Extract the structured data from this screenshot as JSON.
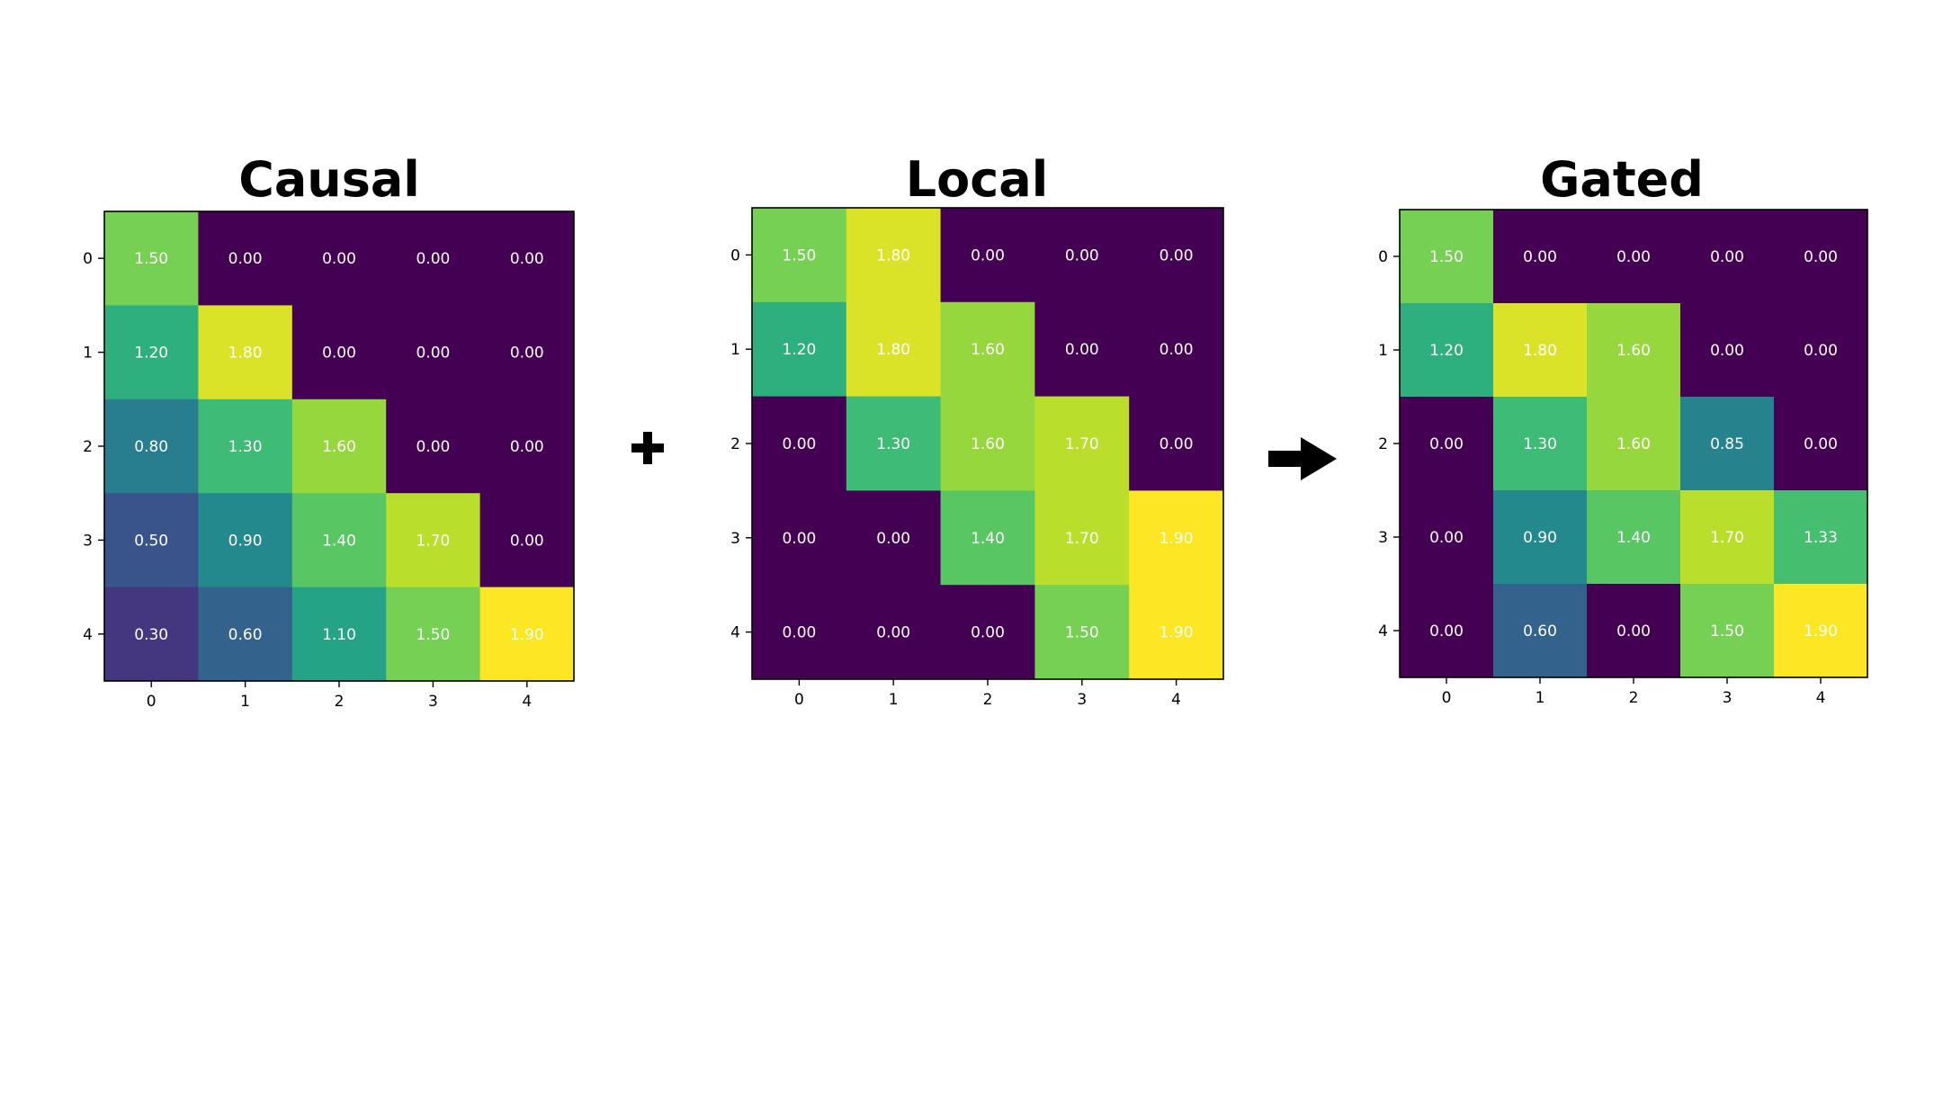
{
  "palette": {
    "viridis": [
      "#440154",
      "#482878",
      "#3e4989",
      "#31688e",
      "#26828e",
      "#1f9e89",
      "#35b779",
      "#6ece58",
      "#b5de2b",
      "#fde725"
    ],
    "operator_color": "#000000"
  },
  "operators": {
    "plus_icon": "plus-icon",
    "arrow_icon": "arrow-right-icon"
  },
  "chart_data": [
    {
      "type": "heatmap",
      "title": "Causal",
      "x_ticks": [
        "0",
        "1",
        "2",
        "3",
        "4"
      ],
      "y_ticks": [
        "0",
        "1",
        "2",
        "3",
        "4"
      ],
      "vmin": 0,
      "vmax": 1.9,
      "colormap": "viridis",
      "values": [
        [
          1.5,
          0.0,
          0.0,
          0.0,
          0.0
        ],
        [
          1.2,
          1.8,
          0.0,
          0.0,
          0.0
        ],
        [
          0.8,
          1.3,
          1.6,
          0.0,
          0.0
        ],
        [
          0.5,
          0.9,
          1.4,
          1.7,
          0.0
        ],
        [
          0.3,
          0.6,
          1.1,
          1.5,
          1.9
        ]
      ]
    },
    {
      "type": "heatmap",
      "title": "Local",
      "x_ticks": [
        "0",
        "1",
        "2",
        "3",
        "4"
      ],
      "y_ticks": [
        "0",
        "1",
        "2",
        "3",
        "4"
      ],
      "vmin": 0,
      "vmax": 1.9,
      "colormap": "viridis",
      "values": [
        [
          1.5,
          1.8,
          0.0,
          0.0,
          0.0
        ],
        [
          1.2,
          1.8,
          1.6,
          0.0,
          0.0
        ],
        [
          0.0,
          1.3,
          1.6,
          1.7,
          0.0
        ],
        [
          0.0,
          0.0,
          1.4,
          1.7,
          1.9
        ],
        [
          0.0,
          0.0,
          0.0,
          1.5,
          1.9
        ]
      ]
    },
    {
      "type": "heatmap",
      "title": "Gated",
      "x_ticks": [
        "0",
        "1",
        "2",
        "3",
        "4"
      ],
      "y_ticks": [
        "0",
        "1",
        "2",
        "3",
        "4"
      ],
      "vmin": 0,
      "vmax": 1.9,
      "colormap": "viridis",
      "values": [
        [
          1.5,
          0.0,
          0.0,
          0.0,
          0.0
        ],
        [
          1.2,
          1.8,
          1.6,
          0.0,
          0.0
        ],
        [
          0.0,
          1.3,
          1.6,
          0.85,
          0.0
        ],
        [
          0.0,
          0.9,
          1.4,
          1.7,
          1.33
        ],
        [
          0.0,
          0.6,
          0.0,
          1.5,
          1.9
        ]
      ]
    }
  ]
}
